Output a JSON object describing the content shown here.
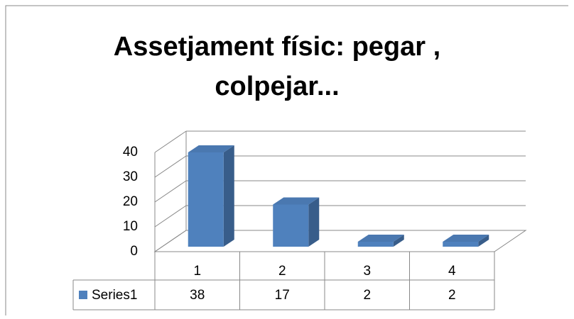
{
  "chart_data": {
    "type": "bar3d",
    "title": "Assetjament físic: pegar , colpejar...",
    "categories": [
      "1",
      "2",
      "3",
      "4"
    ],
    "series": [
      {
        "name": "Series1",
        "color": "#4f81bd",
        "values": [
          38,
          17,
          2,
          2
        ]
      }
    ],
    "ylim": [
      0,
      40
    ],
    "yticks": [
      0,
      10,
      20,
      30,
      40
    ],
    "grid": true,
    "data_table": true
  }
}
